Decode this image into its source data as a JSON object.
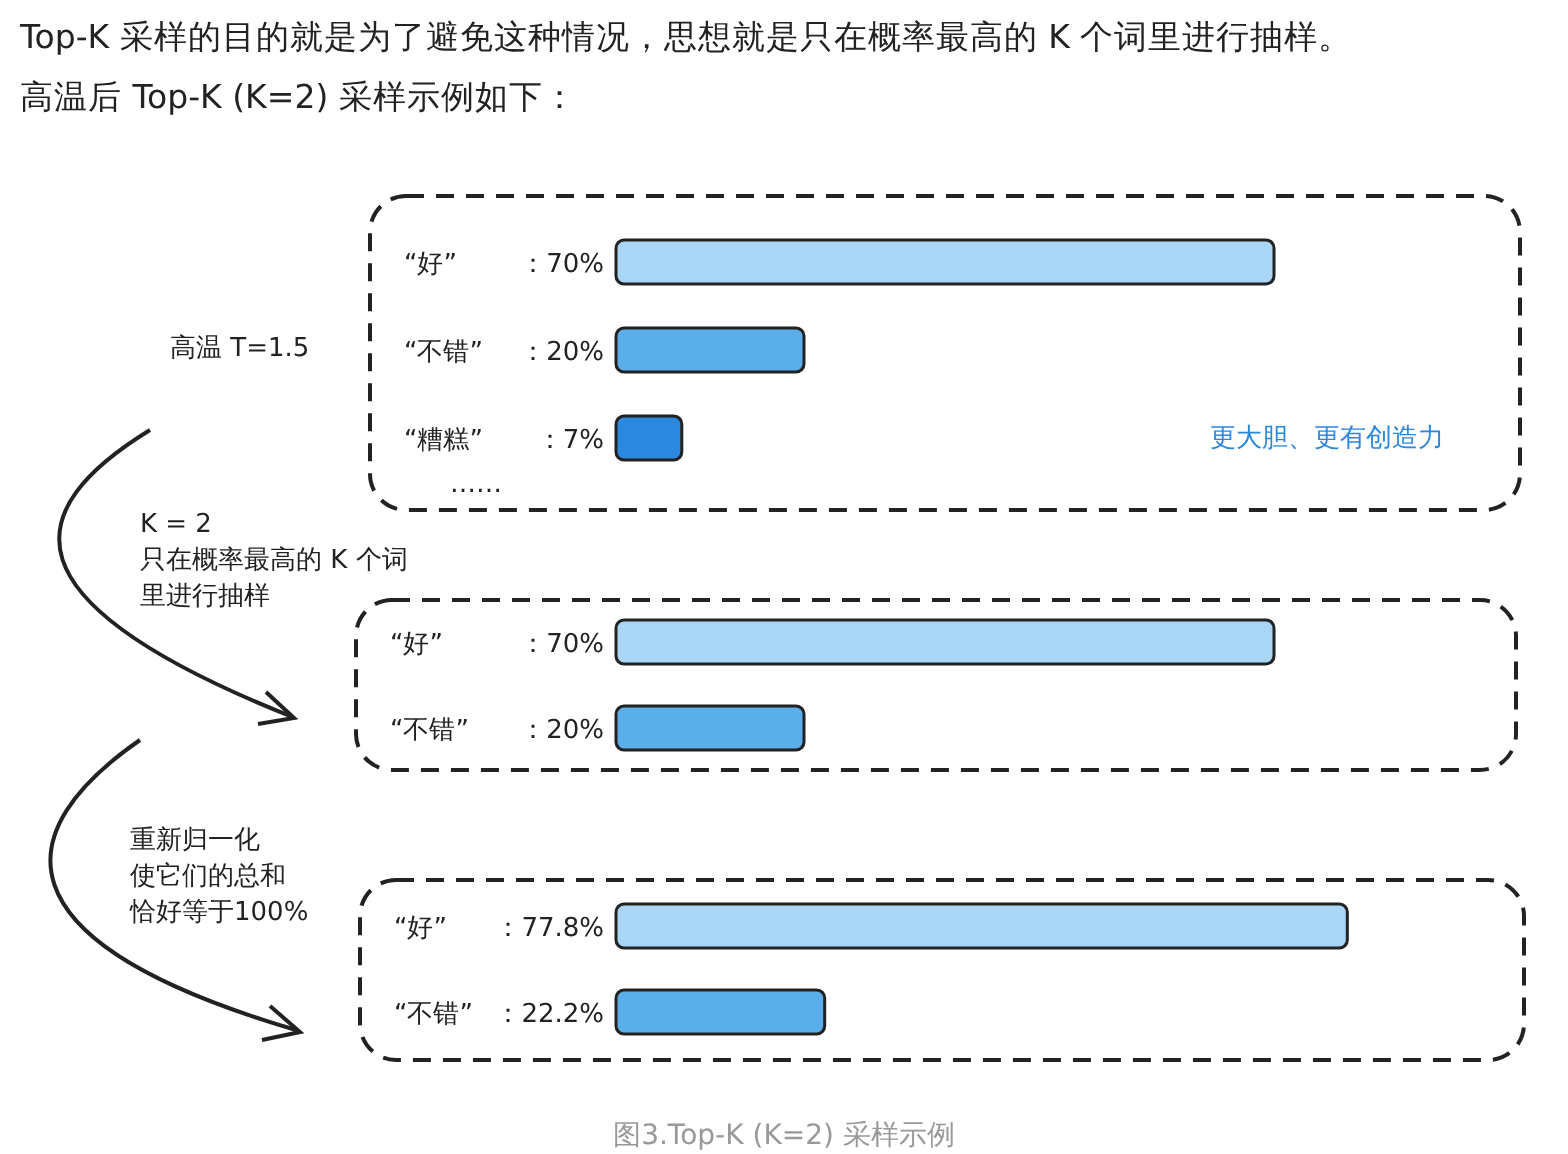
{
  "chart_data": [
    {
      "type": "bar",
      "orientation": "horizontal",
      "title": "Top-K 采样的目的就是为了避免这种情况，思想就是只在概率最高的 K 个词里进行抽样。",
      "subtitle": "高温后 Top-K (K=2) 采样示例如下：",
      "categories": [
        "“好”",
        "“不错”",
        "“糟糕”"
      ],
      "values": [
        70,
        20,
        7
      ],
      "value_labels": [
        "：70%",
        "：20%",
        "：7%"
      ],
      "colors": [
        "#a9d6f7",
        "#5aaeea",
        "#2b87e0"
      ],
      "annotations": [
        "高温 T=1.5",
        "更大胆、更有创造力",
        "……"
      ]
    },
    {
      "type": "bar",
      "orientation": "horizontal",
      "categories": [
        "“好”",
        "“不错”"
      ],
      "values": [
        70,
        20
      ],
      "value_labels": [
        "：70%",
        "：20%"
      ],
      "colors": [
        "#a9d6f7",
        "#5aaeea"
      ],
      "annotations": [
        "K = 2",
        "只在概率最高的 K 个词",
        "里进行抽样"
      ]
    },
    {
      "type": "bar",
      "orientation": "horizontal",
      "categories": [
        "“好”",
        "“不错”"
      ],
      "values": [
        77.8,
        22.2
      ],
      "value_labels": [
        "：77.8%",
        "：22.2%"
      ],
      "colors": [
        "#a9d6f7",
        "#5aaeea"
      ],
      "annotations": [
        "重新归一化",
        "使它们的总和",
        "恰好等于100%",
        "图3.Top-K (K=2) 采样示例"
      ]
    }
  ]
}
